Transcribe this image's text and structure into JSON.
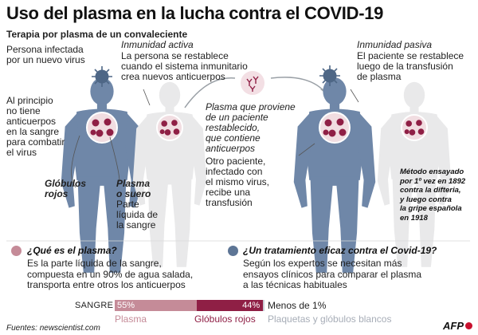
{
  "header": {
    "title": "Uso del plasma en la lucha contra el COVID-19",
    "subtitle": "Terapia por plasma de un convaleciente"
  },
  "left": {
    "infected_label": "Persona infectada\npor un nuevo virus",
    "no_antibodies": "Al principio\nno tiene\nanticuerpos\nen la sangre\npara combatir\nel virus",
    "red_cells": "Glóbulos\nrojos",
    "plasma_title": "Plasma\no suero",
    "plasma_desc": "Parte\nlíquida de\nla sangre"
  },
  "active": {
    "title": "Inmunidad activa",
    "desc": "La persona se restablece\ncuando el sistema inmunitario\ncrea nuevos anticuerpos"
  },
  "middle": {
    "plasma_from": "Plasma que proviene\nde un paciente\nrestablecido,\nque contiene\nanticuerpos",
    "other_patient": "Otro paciente,\ninfectado con\nel mismo virus,\nrecibe una\ntransfusión"
  },
  "passive": {
    "title": "Inmunidad pasiva",
    "desc": "El paciente se restablece\nluego de la transfusión\nde plasma"
  },
  "method_note": "Método ensayado\npor 1º vez en 1892\ncontra la difteria,\ny luego contra\nla gripe española\nen 1918",
  "q1": {
    "title": "¿Qué es el plasma?",
    "body": "Es la parte líquida de la sangre,\ncompuesta en un 90% de agua salada,\ntransporta entre otros los anticuerpos"
  },
  "q2": {
    "title": "¿Un tratamiento eficaz contra el Covid-19?",
    "body": "Según los expertos se necesitan más\nensayos clínicos para comparar el plasma\na las técnicas habituales"
  },
  "blood_bar": {
    "label": "SANGRE",
    "plasma_pct": 55,
    "plasma_label": "55%",
    "red_pct": 44,
    "red_label": "44%",
    "other_label": "Menos de 1%",
    "legend_plasma": "Plasma",
    "legend_red": "Glóbulos rojos",
    "legend_other": "Plaquetas y glóbulos blancos"
  },
  "footer": {
    "source": "Fuentes: newscientist.com",
    "logo": "AFP"
  },
  "colors": {
    "body_blue": "#6f87a8",
    "body_grey": "#e9e9ea",
    "plasma_pink": "#c58b98",
    "red_cell": "#8f1f45",
    "dot_blue": "#5d7595"
  }
}
